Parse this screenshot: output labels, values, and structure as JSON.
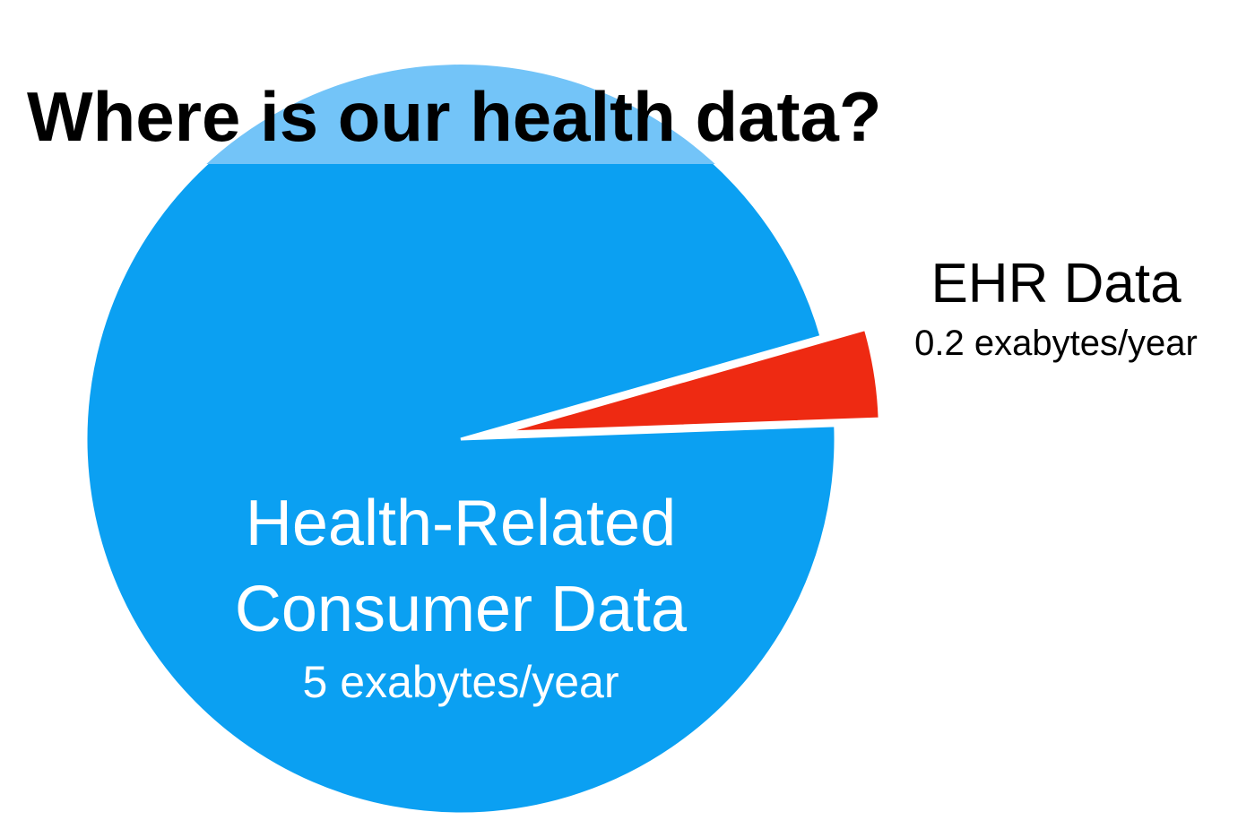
{
  "chart_data": {
    "type": "pie",
    "title": "Where is our health data?",
    "slices": [
      {
        "name_lines": [
          "Health-Related",
          "Consumer Data"
        ],
        "value_label": "5 exabytes/year",
        "value": 5,
        "color": "#0BA0F2"
      },
      {
        "name_lines": [
          "EHR Data"
        ],
        "value_label": "0.2 exabytes/year",
        "value": 0.2,
        "color": "#EE2A12",
        "exploded": true
      }
    ],
    "title_band_color": "#73C4F8",
    "unit": "exabytes/year",
    "legend": "none"
  }
}
